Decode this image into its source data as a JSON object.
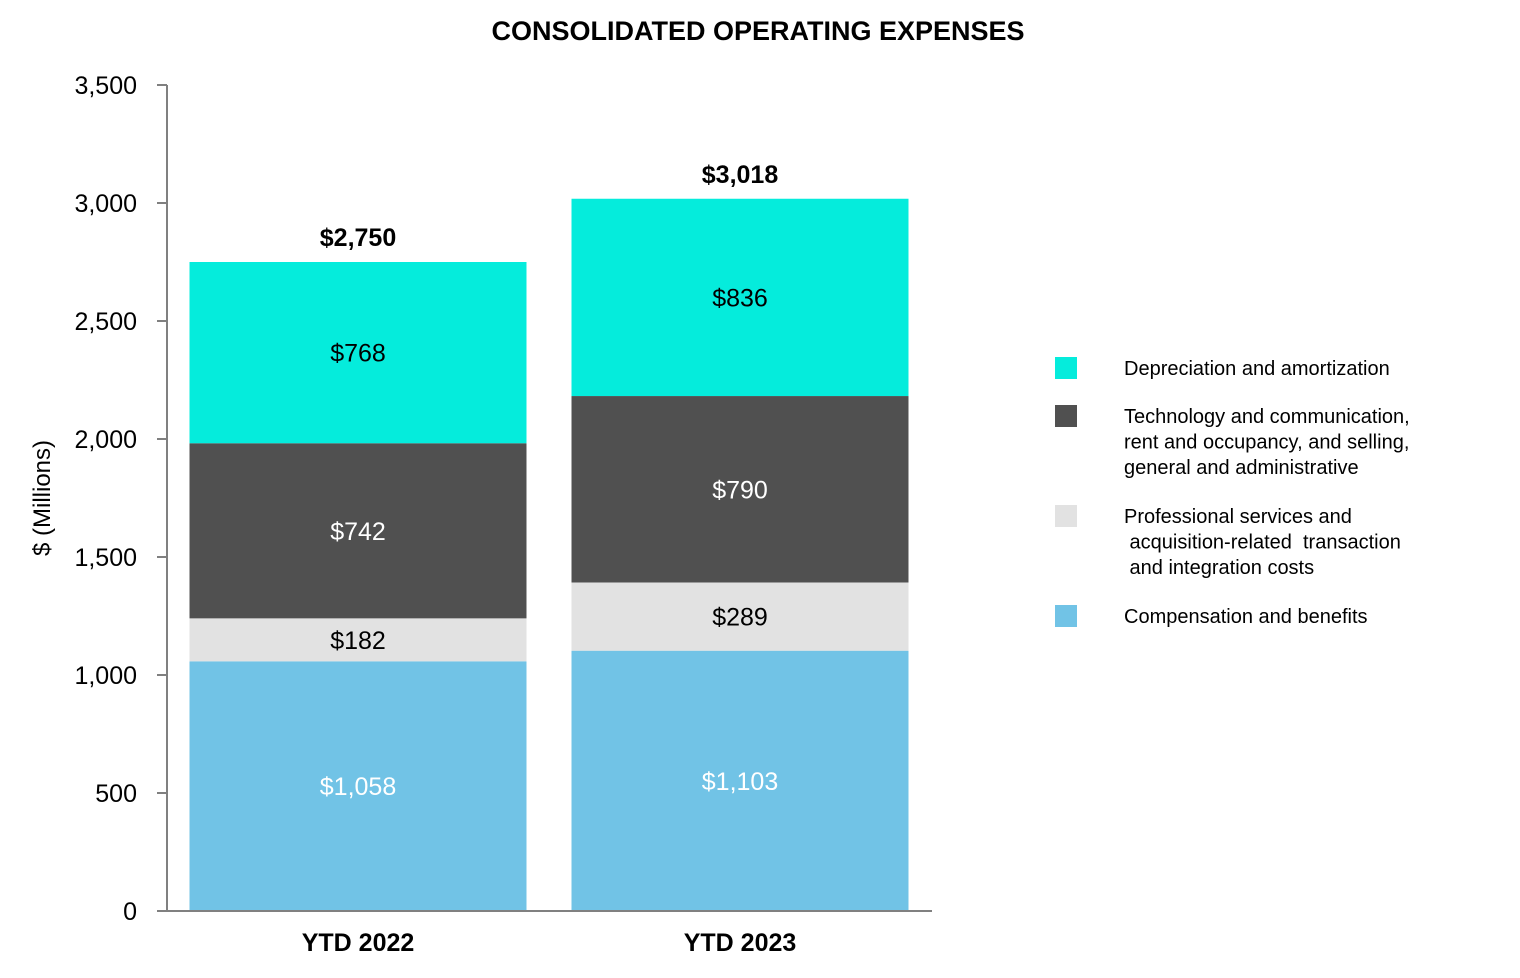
{
  "chart_data": {
    "type": "bar",
    "stacked": true,
    "title": "CONSOLIDATED OPERATING EXPENSES",
    "ylabel": "$ (Millions)",
    "ylim": [
      0,
      3500
    ],
    "yticks": [
      0,
      500,
      1000,
      1500,
      2000,
      2500,
      3000,
      3500
    ],
    "ytick_labels": [
      "0",
      "500",
      "1,000",
      "1,500",
      "2,000",
      "2,500",
      "3,000",
      "3,500"
    ],
    "categories": [
      "YTD 2022",
      "YTD 2023"
    ],
    "totals": [
      2750,
      3018
    ],
    "total_labels": [
      "$2,750",
      "$3,018"
    ],
    "series": [
      {
        "name": "Compensation and benefits",
        "color": "#71c3e6",
        "label_color": "#ffffff",
        "values": [
          1058,
          1103
        ],
        "labels": [
          "$1,058",
          "$1,103"
        ]
      },
      {
        "name": "Professional services and acquisition-related transaction and integration costs",
        "color": "#e2e2e2",
        "label_color": "#000000",
        "values": [
          182,
          289
        ],
        "labels": [
          "$182",
          "$289"
        ]
      },
      {
        "name": "Technology and communication, rent and occupancy, and selling, general and administrative",
        "color": "#505050",
        "label_color": "#ffffff",
        "values": [
          742,
          790
        ],
        "labels": [
          "$742",
          "$790"
        ]
      },
      {
        "name": "Depreciation and amortization",
        "color": "#05ecdc",
        "label_color": "#000000",
        "values": [
          768,
          836
        ],
        "labels": [
          "$768",
          "$836"
        ]
      }
    ],
    "legend": {
      "position": "right",
      "items": [
        {
          "series": 3,
          "lines": [
            "Depreciation and amortization"
          ]
        },
        {
          "series": 2,
          "lines": [
            "Technology and communication,",
            "rent and occupancy, and selling,",
            "general and administrative"
          ]
        },
        {
          "series": 1,
          "lines": [
            "Professional services and",
            " acquisition-related  transaction",
            " and integration costs"
          ]
        },
        {
          "series": 0,
          "lines": [
            "Compensation and benefits"
          ]
        }
      ]
    },
    "axis_color": "#808080",
    "grid": false
  }
}
